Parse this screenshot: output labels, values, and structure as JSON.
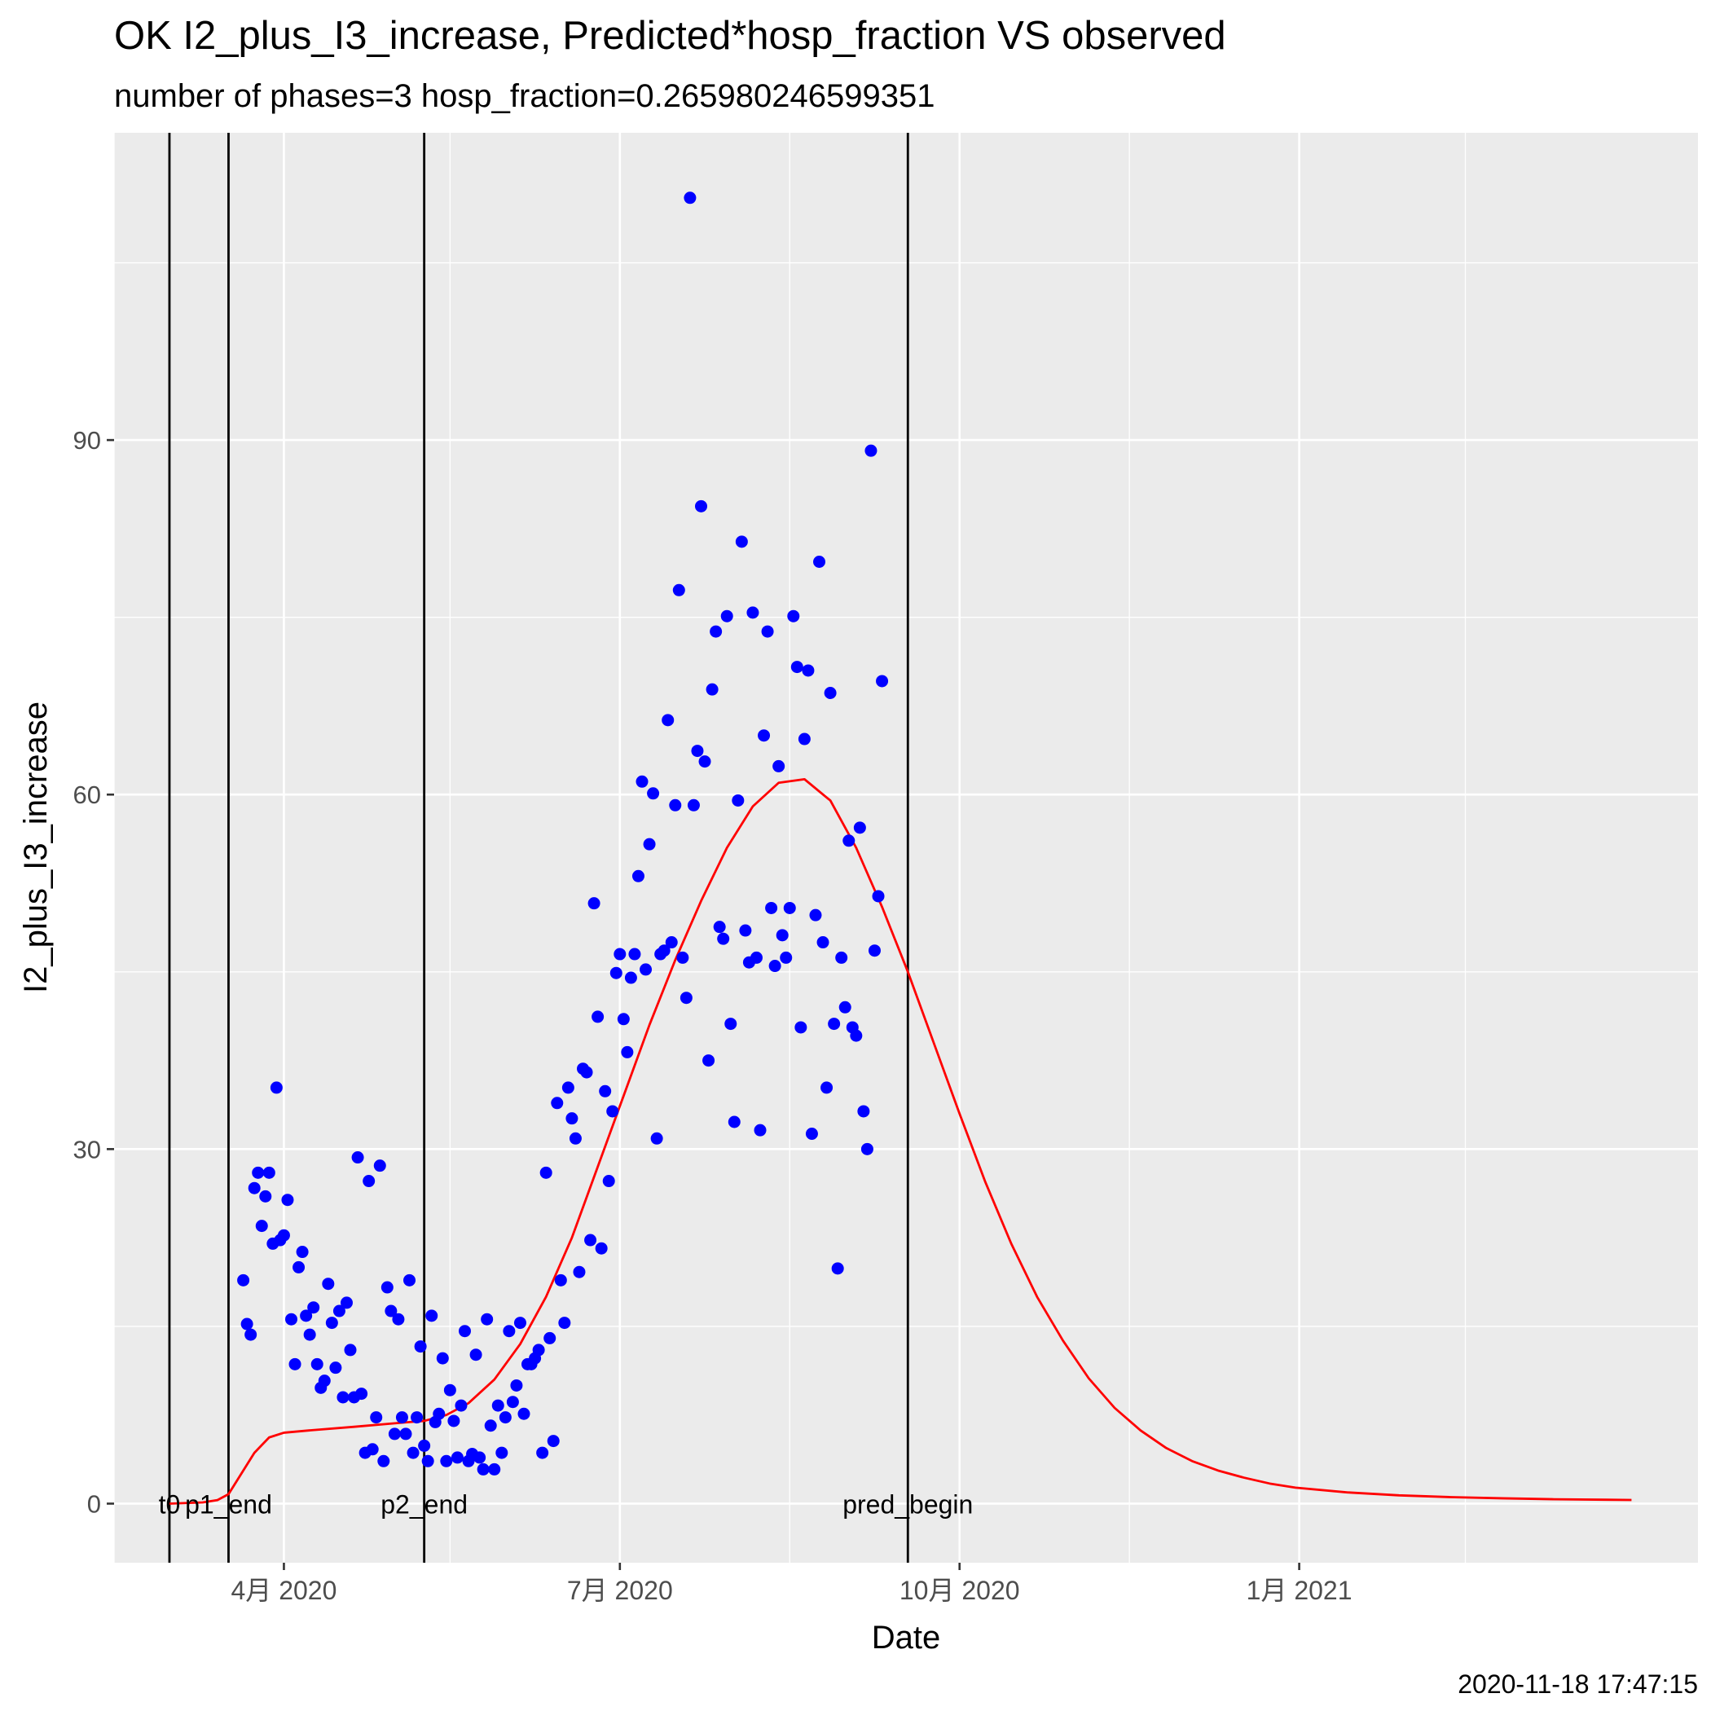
{
  "chart_data": {
    "type": "scatter",
    "title": "OK I2_plus_I3_increase, Predicted*hosp_fraction VS observed",
    "subtitle": "number of phases=3   hosp_fraction=0.265980246599351",
    "xlabel": "Date",
    "ylabel": "I2_plus_I3_increase",
    "caption": "2020-11-18 17:47:15",
    "xlim": [
      "2020-02-15",
      "2021-04-19"
    ],
    "ylim": [
      -5,
      116
    ],
    "x_ticks": [
      {
        "date": "2020-04-01",
        "label": "4月 2020"
      },
      {
        "date": "2020-07-01",
        "label": "7月 2020"
      },
      {
        "date": "2020-10-01",
        "label": "10月 2020"
      },
      {
        "date": "2021-01-01",
        "label": "1月 2021"
      }
    ],
    "x_minor_ticks": [
      "2020-02-15",
      "2020-05-16",
      "2020-08-16",
      "2020-11-16",
      "2021-02-15"
    ],
    "y_ticks": [
      0,
      30,
      60,
      90
    ],
    "y_minor_ticks": [
      15,
      45,
      75,
      105
    ],
    "grid": true,
    "vlines": [
      {
        "date": "2020-03-01",
        "label": "t0"
      },
      {
        "date": "2020-03-17",
        "label": "p1_end"
      },
      {
        "date": "2020-05-09",
        "label": "p2_end"
      },
      {
        "date": "2020-09-17",
        "label": "pred_begin"
      }
    ],
    "series": [
      {
        "kind": "points",
        "color": "#0000ff",
        "points": [
          [
            "2020-03-21",
            18.9
          ],
          [
            "2020-03-22",
            15.2
          ],
          [
            "2020-03-23",
            14.3
          ],
          [
            "2020-03-24",
            26.7
          ],
          [
            "2020-03-25",
            28.0
          ],
          [
            "2020-03-26",
            23.5
          ],
          [
            "2020-03-27",
            26.0
          ],
          [
            "2020-03-28",
            28.0
          ],
          [
            "2020-03-29",
            22.0
          ],
          [
            "2020-03-30",
            35.2
          ],
          [
            "2020-03-31",
            22.3
          ],
          [
            "2020-04-01",
            22.7
          ],
          [
            "2020-04-02",
            25.7
          ],
          [
            "2020-04-03",
            15.6
          ],
          [
            "2020-04-04",
            11.8
          ],
          [
            "2020-04-05",
            20.0
          ],
          [
            "2020-04-06",
            21.3
          ],
          [
            "2020-04-07",
            15.9
          ],
          [
            "2020-04-08",
            14.3
          ],
          [
            "2020-04-09",
            16.6
          ],
          [
            "2020-04-10",
            11.8
          ],
          [
            "2020-04-11",
            9.8
          ],
          [
            "2020-04-12",
            10.4
          ],
          [
            "2020-04-13",
            18.6
          ],
          [
            "2020-04-14",
            15.3
          ],
          [
            "2020-04-15",
            11.5
          ],
          [
            "2020-04-16",
            16.3
          ],
          [
            "2020-04-17",
            9.0
          ],
          [
            "2020-04-18",
            17.0
          ],
          [
            "2020-04-19",
            13.0
          ],
          [
            "2020-04-20",
            9.0
          ],
          [
            "2020-04-21",
            29.3
          ],
          [
            "2020-04-22",
            9.3
          ],
          [
            "2020-04-23",
            4.3
          ],
          [
            "2020-04-24",
            27.3
          ],
          [
            "2020-04-25",
            4.6
          ],
          [
            "2020-04-26",
            7.3
          ],
          [
            "2020-04-27",
            28.6
          ],
          [
            "2020-04-28",
            3.6
          ],
          [
            "2020-04-29",
            18.3
          ],
          [
            "2020-04-30",
            16.3
          ],
          [
            "2020-05-01",
            5.9
          ],
          [
            "2020-05-02",
            15.6
          ],
          [
            "2020-05-03",
            7.3
          ],
          [
            "2020-05-04",
            5.9
          ],
          [
            "2020-05-05",
            18.9
          ],
          [
            "2020-05-06",
            4.3
          ],
          [
            "2020-05-07",
            7.3
          ],
          [
            "2020-05-08",
            13.3
          ],
          [
            "2020-05-09",
            4.9
          ],
          [
            "2020-05-10",
            3.6
          ],
          [
            "2020-05-11",
            15.9
          ],
          [
            "2020-05-12",
            6.9
          ],
          [
            "2020-05-13",
            7.6
          ],
          [
            "2020-05-14",
            12.3
          ],
          [
            "2020-05-15",
            3.6
          ],
          [
            "2020-05-16",
            9.6
          ],
          [
            "2020-05-17",
            7.0
          ],
          [
            "2020-05-18",
            3.9
          ],
          [
            "2020-05-19",
            8.3
          ],
          [
            "2020-05-20",
            14.6
          ],
          [
            "2020-05-21",
            3.6
          ],
          [
            "2020-05-22",
            4.2
          ],
          [
            "2020-05-23",
            12.6
          ],
          [
            "2020-05-24",
            3.9
          ],
          [
            "2020-05-25",
            2.9
          ],
          [
            "2020-05-26",
            15.6
          ],
          [
            "2020-05-27",
            6.6
          ],
          [
            "2020-05-28",
            2.9
          ],
          [
            "2020-05-29",
            8.3
          ],
          [
            "2020-05-30",
            4.3
          ],
          [
            "2020-05-31",
            7.3
          ],
          [
            "2020-06-01",
            14.6
          ],
          [
            "2020-06-02",
            8.6
          ],
          [
            "2020-06-03",
            10.0
          ],
          [
            "2020-06-04",
            15.3
          ],
          [
            "2020-06-05",
            7.6
          ],
          [
            "2020-06-06",
            11.8
          ],
          [
            "2020-06-07",
            11.8
          ],
          [
            "2020-06-08",
            12.3
          ],
          [
            "2020-06-09",
            13.0
          ],
          [
            "2020-06-10",
            4.3
          ],
          [
            "2020-06-11",
            28.0
          ],
          [
            "2020-06-12",
            14.0
          ],
          [
            "2020-06-13",
            5.3
          ],
          [
            "2020-06-14",
            33.9
          ],
          [
            "2020-06-15",
            18.9
          ],
          [
            "2020-06-16",
            15.3
          ],
          [
            "2020-06-17",
            35.2
          ],
          [
            "2020-06-18",
            32.6
          ],
          [
            "2020-06-19",
            30.9
          ],
          [
            "2020-06-20",
            19.6
          ],
          [
            "2020-06-21",
            36.8
          ],
          [
            "2020-06-22",
            36.5
          ],
          [
            "2020-06-23",
            22.3
          ],
          [
            "2020-06-24",
            50.8
          ],
          [
            "2020-06-25",
            41.2
          ],
          [
            "2020-06-26",
            21.6
          ],
          [
            "2020-06-27",
            34.9
          ],
          [
            "2020-06-28",
            27.3
          ],
          [
            "2020-06-29",
            33.2
          ],
          [
            "2020-06-30",
            44.9
          ],
          [
            "2020-07-01",
            46.5
          ],
          [
            "2020-07-02",
            41.0
          ],
          [
            "2020-07-03",
            38.2
          ],
          [
            "2020-07-04",
            44.5
          ],
          [
            "2020-07-05",
            46.5
          ],
          [
            "2020-07-06",
            53.1
          ],
          [
            "2020-07-07",
            61.1
          ],
          [
            "2020-07-08",
            45.2
          ],
          [
            "2020-07-09",
            55.8
          ],
          [
            "2020-07-10",
            60.1
          ],
          [
            "2020-07-11",
            30.9
          ],
          [
            "2020-07-12",
            46.5
          ],
          [
            "2020-07-13",
            46.8
          ],
          [
            "2020-07-14",
            66.3
          ],
          [
            "2020-07-15",
            47.5
          ],
          [
            "2020-07-16",
            59.1
          ],
          [
            "2020-07-17",
            77.3
          ],
          [
            "2020-07-18",
            46.2
          ],
          [
            "2020-07-19",
            42.8
          ],
          [
            "2020-07-20",
            110.5
          ],
          [
            "2020-07-21",
            59.1
          ],
          [
            "2020-07-22",
            63.7
          ],
          [
            "2020-07-23",
            84.4
          ],
          [
            "2020-07-24",
            62.8
          ],
          [
            "2020-07-25",
            37.5
          ],
          [
            "2020-07-26",
            68.9
          ],
          [
            "2020-07-27",
            73.8
          ],
          [
            "2020-07-28",
            48.8
          ],
          [
            "2020-07-29",
            47.8
          ],
          [
            "2020-07-30",
            75.1
          ],
          [
            "2020-07-31",
            40.6
          ],
          [
            "2020-08-01",
            32.3
          ],
          [
            "2020-08-02",
            59.5
          ],
          [
            "2020-08-03",
            81.4
          ],
          [
            "2020-08-04",
            48.5
          ],
          [
            "2020-08-05",
            45.8
          ],
          [
            "2020-08-06",
            75.4
          ],
          [
            "2020-08-07",
            46.2
          ],
          [
            "2020-08-08",
            31.6
          ],
          [
            "2020-08-09",
            65.0
          ],
          [
            "2020-08-10",
            73.8
          ],
          [
            "2020-08-11",
            50.4
          ],
          [
            "2020-08-12",
            45.5
          ],
          [
            "2020-08-13",
            62.4
          ],
          [
            "2020-08-14",
            48.1
          ],
          [
            "2020-08-15",
            46.2
          ],
          [
            "2020-08-16",
            50.4
          ],
          [
            "2020-08-17",
            75.1
          ],
          [
            "2020-08-18",
            70.8
          ],
          [
            "2020-08-19",
            40.3
          ],
          [
            "2020-08-20",
            64.7
          ],
          [
            "2020-08-21",
            70.5
          ],
          [
            "2020-08-22",
            31.3
          ],
          [
            "2020-08-23",
            49.8
          ],
          [
            "2020-08-24",
            79.7
          ],
          [
            "2020-08-25",
            47.5
          ],
          [
            "2020-08-26",
            35.2
          ],
          [
            "2020-08-27",
            68.6
          ],
          [
            "2020-08-28",
            40.6
          ],
          [
            "2020-08-29",
            19.9
          ],
          [
            "2020-08-30",
            46.2
          ],
          [
            "2020-08-31",
            42.0
          ],
          [
            "2020-09-01",
            56.1
          ],
          [
            "2020-09-02",
            40.3
          ],
          [
            "2020-09-03",
            39.6
          ],
          [
            "2020-09-04",
            57.2
          ],
          [
            "2020-09-05",
            33.2
          ],
          [
            "2020-09-06",
            30.0
          ],
          [
            "2020-09-07",
            89.1
          ],
          [
            "2020-09-08",
            46.8
          ],
          [
            "2020-09-09",
            51.4
          ],
          [
            "2020-09-10",
            69.6
          ]
        ]
      },
      {
        "kind": "line",
        "color": "#ff0000",
        "points": [
          [
            "2020-03-01",
            0.0
          ],
          [
            "2020-03-10",
            0.1
          ],
          [
            "2020-03-14",
            0.3
          ],
          [
            "2020-03-17",
            0.8
          ],
          [
            "2020-03-20",
            2.3
          ],
          [
            "2020-03-24",
            4.3
          ],
          [
            "2020-03-28",
            5.6
          ],
          [
            "2020-04-01",
            6.0
          ],
          [
            "2020-04-08",
            6.2
          ],
          [
            "2020-04-20",
            6.5
          ],
          [
            "2020-05-01",
            6.8
          ],
          [
            "2020-05-09",
            7.0
          ],
          [
            "2020-05-15",
            7.5
          ],
          [
            "2020-05-21",
            8.5
          ],
          [
            "2020-05-28",
            10.5
          ],
          [
            "2020-06-04",
            13.5
          ],
          [
            "2020-06-11",
            17.5
          ],
          [
            "2020-06-18",
            22.5
          ],
          [
            "2020-06-25",
            28.5
          ],
          [
            "2020-07-02",
            34.5
          ],
          [
            "2020-07-09",
            40.5
          ],
          [
            "2020-07-16",
            46.0
          ],
          [
            "2020-07-23",
            51.0
          ],
          [
            "2020-07-30",
            55.5
          ],
          [
            "2020-08-06",
            59.0
          ],
          [
            "2020-08-13",
            61.0
          ],
          [
            "2020-08-20",
            61.3
          ],
          [
            "2020-08-27",
            59.5
          ],
          [
            "2020-09-03",
            55.5
          ],
          [
            "2020-09-10",
            50.5
          ],
          [
            "2020-09-17",
            45.0
          ],
          [
            "2020-09-24",
            39.0
          ],
          [
            "2020-10-01",
            33.0
          ],
          [
            "2020-10-08",
            27.2
          ],
          [
            "2020-10-15",
            22.0
          ],
          [
            "2020-10-22",
            17.5
          ],
          [
            "2020-10-29",
            13.8
          ],
          [
            "2020-11-05",
            10.6
          ],
          [
            "2020-11-12",
            8.1
          ],
          [
            "2020-11-19",
            6.2
          ],
          [
            "2020-11-26",
            4.7
          ],
          [
            "2020-12-03",
            3.6
          ],
          [
            "2020-12-10",
            2.8
          ],
          [
            "2020-12-17",
            2.2
          ],
          [
            "2020-12-24",
            1.7
          ],
          [
            "2020-12-31",
            1.35
          ],
          [
            "2021-01-14",
            0.95
          ],
          [
            "2021-01-28",
            0.7
          ],
          [
            "2021-02-11",
            0.55
          ],
          [
            "2021-02-25",
            0.45
          ],
          [
            "2021-03-11",
            0.37
          ],
          [
            "2021-03-25",
            0.33
          ],
          [
            "2021-04-01",
            0.31
          ]
        ]
      }
    ]
  }
}
